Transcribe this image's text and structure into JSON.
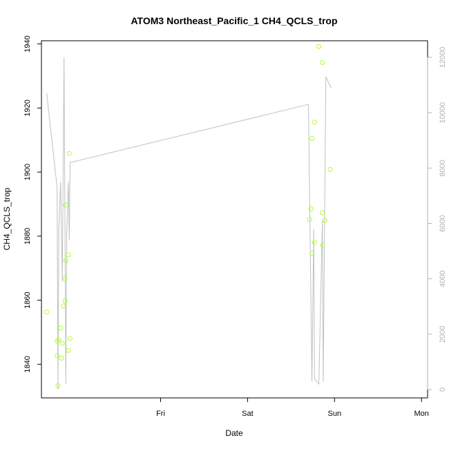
{
  "chart_data": {
    "type": "scatter",
    "title": "ATOM3 Northeast_Pacific_1 CH4_QCLS_trop",
    "xlabel": "Date",
    "ylabel": "CH4_QCLS_trop",
    "x_tick_labels": [
      "Fri",
      "Sat",
      "Sun",
      "Mon"
    ],
    "x_tick_values": [
      1,
      2,
      3,
      4
    ],
    "xlim": [
      -0.37,
      4.07
    ],
    "ylim": [
      1829.5,
      1941
    ],
    "y_ticks": [
      1840,
      1860,
      1880,
      1900,
      1920,
      1940
    ],
    "y2lim": [
      -300,
      12600
    ],
    "y2_ticks": [
      0,
      2000,
      4000,
      6000,
      8000,
      10000,
      12000
    ],
    "grid": false,
    "series": [
      {
        "kind": "points",
        "color": "#adff2f",
        "axis": "left",
        "points": [
          [
            -0.31,
            1856.3
          ],
          [
            -0.19,
            1847.3
          ],
          [
            -0.19,
            1842.7
          ],
          [
            -0.18,
            1833.3
          ],
          [
            -0.17,
            1847.6
          ],
          [
            -0.15,
            1851.3
          ],
          [
            -0.14,
            1841.9
          ],
          [
            -0.13,
            1846.5
          ],
          [
            -0.12,
            1858.2
          ],
          [
            -0.1,
            1859.8
          ],
          [
            -0.1,
            1866.8
          ],
          [
            -0.09,
            1889.7
          ],
          [
            -0.09,
            1872.3
          ],
          [
            -0.06,
            1874.2
          ],
          [
            -0.06,
            1844.3
          ],
          [
            -0.05,
            1905.8
          ],
          [
            -0.04,
            1848.0
          ],
          [
            2.71,
            1885.2
          ],
          [
            2.73,
            1888.5
          ],
          [
            2.74,
            1874.6
          ],
          [
            2.74,
            1910.5
          ],
          [
            2.77,
            1915.6
          ],
          [
            2.77,
            1878.0
          ],
          [
            2.82,
            1939.2
          ],
          [
            2.86,
            1934.2
          ],
          [
            2.86,
            1887.3
          ],
          [
            2.86,
            1877.1
          ],
          [
            2.89,
            1884.9
          ],
          [
            2.95,
            1900.8
          ]
        ]
      },
      {
        "kind": "line",
        "color": "#c0c0c0",
        "axis": "right",
        "points": [
          [
            -0.31,
            10700
          ],
          [
            -0.19,
            7300
          ],
          [
            -0.18,
            0
          ],
          [
            -0.17,
            5800
          ],
          [
            -0.15,
            7500
          ],
          [
            -0.13,
            3900
          ],
          [
            -0.11,
            12000
          ],
          [
            -0.09,
            200
          ],
          [
            -0.08,
            5600
          ],
          [
            -0.06,
            7500
          ],
          [
            -0.05,
            5400
          ],
          [
            -0.04,
            8200
          ],
          [
            2.7,
            10300
          ],
          [
            2.74,
            300
          ],
          [
            2.76,
            5800
          ],
          [
            2.77,
            400
          ],
          [
            2.82,
            200
          ],
          [
            2.86,
            6100
          ],
          [
            2.87,
            300
          ],
          [
            2.9,
            11300
          ],
          [
            2.96,
            10900
          ]
        ]
      }
    ]
  }
}
